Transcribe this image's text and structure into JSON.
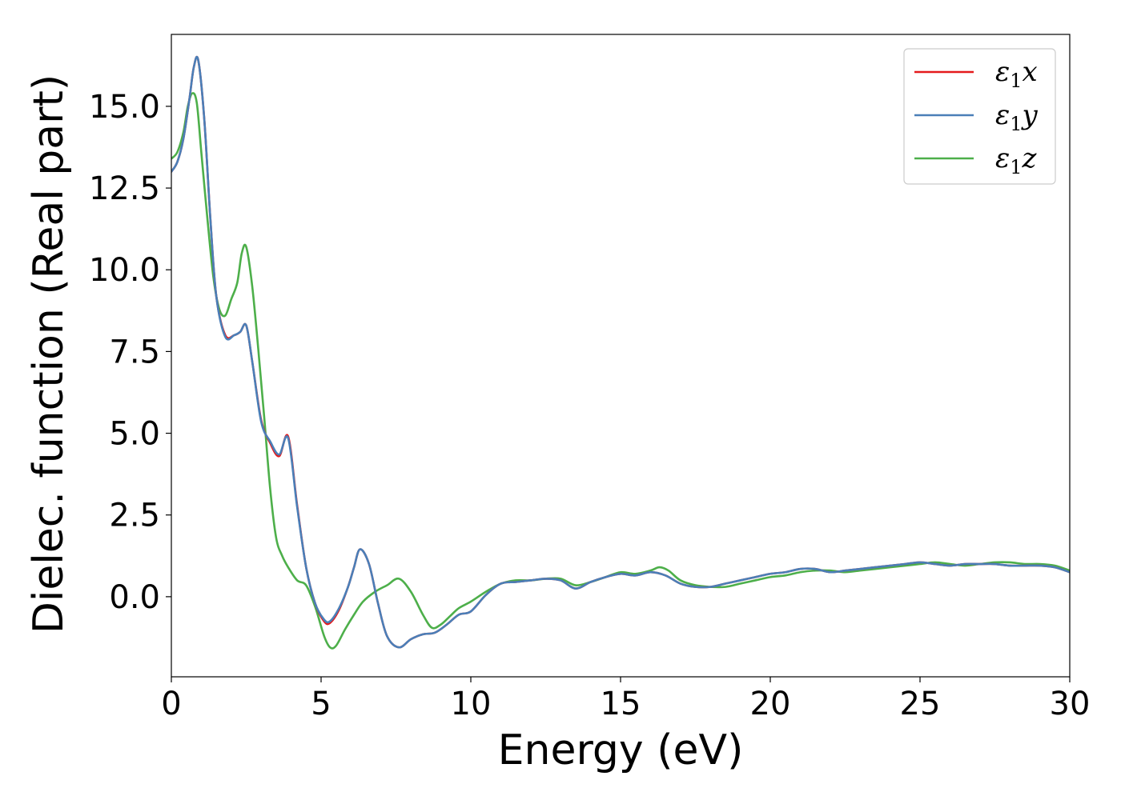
{
  "chart_data": {
    "type": "line",
    "xlabel": "Energy (eV)",
    "ylabel": "Dielec. function (Real part)",
    "xlim": [
      0,
      30
    ],
    "ylim": [
      -2.45,
      17.2
    ],
    "xticks": [
      0,
      5,
      10,
      15,
      20,
      25,
      30
    ],
    "xtick_labels": [
      "0",
      "5",
      "10",
      "15",
      "20",
      "25",
      "30"
    ],
    "yticks": [
      0,
      2.5,
      5,
      7.5,
      10,
      12.5,
      15
    ],
    "ytick_labels": [
      "0.0",
      "2.5",
      "5.0",
      "7.5",
      "10.0",
      "12.5",
      "15.0"
    ],
    "grid": false,
    "legend_position": "top-right",
    "series": [
      {
        "name": "ε1x",
        "legend": {
          "base": "ε",
          "sub": "1",
          "tail": "x"
        },
        "color": "#e41a1c",
        "x": [
          0,
          0.2,
          0.4,
          0.6,
          0.75,
          0.9,
          1.1,
          1.3,
          1.5,
          1.8,
          2.1,
          2.3,
          2.5,
          2.7,
          3.0,
          3.3,
          3.6,
          3.9,
          4.2,
          4.5,
          4.8,
          5.1,
          5.3,
          5.6,
          5.9,
          6.1,
          6.3,
          6.6,
          6.9,
          7.2,
          7.6,
          8.0,
          8.4,
          8.8,
          9.2,
          9.6,
          10.0,
          10.5,
          11.0,
          11.5,
          12.0,
          12.5,
          13.0,
          13.5,
          14.0,
          14.5,
          15.0,
          15.5,
          16.0,
          16.5,
          17.0,
          17.5,
          18.0,
          18.5,
          19.0,
          19.5,
          20.0,
          20.5,
          21.0,
          21.5,
          22.0,
          22.5,
          23.0,
          23.5,
          24.0,
          24.5,
          25.0,
          25.5,
          26.0,
          26.5,
          27.0,
          27.5,
          28.0,
          28.5,
          29.0,
          29.5,
          30.0
        ],
        "y": [
          13.0,
          13.3,
          14.0,
          15.2,
          16.2,
          16.4,
          14.6,
          11.6,
          9.2,
          8.0,
          8.0,
          8.1,
          8.3,
          7.2,
          5.4,
          4.7,
          4.3,
          4.9,
          2.8,
          0.9,
          -0.2,
          -0.75,
          -0.8,
          -0.4,
          0.3,
          0.9,
          1.45,
          1.0,
          -0.2,
          -1.2,
          -1.55,
          -1.3,
          -1.15,
          -1.1,
          -0.85,
          -0.55,
          -0.45,
          0.05,
          0.4,
          0.45,
          0.5,
          0.55,
          0.5,
          0.25,
          0.45,
          0.6,
          0.7,
          0.65,
          0.75,
          0.65,
          0.4,
          0.3,
          0.3,
          0.4,
          0.5,
          0.6,
          0.7,
          0.75,
          0.85,
          0.85,
          0.75,
          0.8,
          0.85,
          0.9,
          0.95,
          1.0,
          1.05,
          1.0,
          0.95,
          1.0,
          1.0,
          1.0,
          0.95,
          0.95,
          0.95,
          0.9,
          0.75
        ]
      },
      {
        "name": "ε1y",
        "legend": {
          "base": "ε",
          "sub": "1",
          "tail": "y"
        },
        "color": "#4a7fb8",
        "x": [
          0,
          0.2,
          0.4,
          0.6,
          0.75,
          0.9,
          1.1,
          1.3,
          1.5,
          1.8,
          2.1,
          2.3,
          2.5,
          2.7,
          3.0,
          3.3,
          3.6,
          3.9,
          4.2,
          4.5,
          4.8,
          5.1,
          5.3,
          5.6,
          5.9,
          6.1,
          6.3,
          6.6,
          6.9,
          7.2,
          7.6,
          8.0,
          8.4,
          8.8,
          9.2,
          9.6,
          10.0,
          10.5,
          11.0,
          11.5,
          12.0,
          12.5,
          13.0,
          13.5,
          14.0,
          14.5,
          15.0,
          15.5,
          16.0,
          16.5,
          17.0,
          17.5,
          18.0,
          18.5,
          19.0,
          19.5,
          20.0,
          20.5,
          21.0,
          21.5,
          22.0,
          22.5,
          23.0,
          23.5,
          24.0,
          24.5,
          25.0,
          25.5,
          26.0,
          26.5,
          27.0,
          27.5,
          28.0,
          28.5,
          29.0,
          29.5,
          30.0
        ],
        "y": [
          13.0,
          13.3,
          14.0,
          15.2,
          16.2,
          16.4,
          14.6,
          11.6,
          9.2,
          7.95,
          8.0,
          8.1,
          8.3,
          7.2,
          5.35,
          4.75,
          4.35,
          4.85,
          2.75,
          0.9,
          -0.2,
          -0.7,
          -0.75,
          -0.35,
          0.3,
          0.9,
          1.45,
          1.0,
          -0.2,
          -1.2,
          -1.55,
          -1.3,
          -1.15,
          -1.1,
          -0.85,
          -0.55,
          -0.45,
          0.05,
          0.4,
          0.45,
          0.5,
          0.55,
          0.5,
          0.25,
          0.45,
          0.6,
          0.7,
          0.65,
          0.75,
          0.65,
          0.4,
          0.3,
          0.3,
          0.4,
          0.5,
          0.6,
          0.7,
          0.75,
          0.85,
          0.85,
          0.75,
          0.8,
          0.85,
          0.9,
          0.95,
          1.0,
          1.05,
          1.0,
          0.95,
          1.0,
          1.0,
          1.0,
          0.95,
          0.95,
          0.95,
          0.9,
          0.75
        ]
      },
      {
        "name": "ε1z",
        "legend": {
          "base": "ε",
          "sub": "1",
          "tail": "z"
        },
        "color": "#4daf4a",
        "x": [
          0,
          0.2,
          0.4,
          0.55,
          0.7,
          0.85,
          1.0,
          1.2,
          1.4,
          1.6,
          1.8,
          2.0,
          2.2,
          2.35,
          2.5,
          2.7,
          2.9,
          3.1,
          3.3,
          3.5,
          3.7,
          3.9,
          4.2,
          4.5,
          4.8,
          5.1,
          5.3,
          5.5,
          5.8,
          6.1,
          6.4,
          6.8,
          7.2,
          7.6,
          8.0,
          8.4,
          8.7,
          9.0,
          9.3,
          9.6,
          10.0,
          10.5,
          11.0,
          11.5,
          12.0,
          12.5,
          13.0,
          13.5,
          14.0,
          14.5,
          15.0,
          15.5,
          16.0,
          16.3,
          16.6,
          17.0,
          17.5,
          18.0,
          18.5,
          19.0,
          19.5,
          20.0,
          20.5,
          21.0,
          21.5,
          22.0,
          22.5,
          23.0,
          23.5,
          24.0,
          24.5,
          25.0,
          25.5,
          26.0,
          26.5,
          27.0,
          27.5,
          28.0,
          28.5,
          29.0,
          29.5,
          30.0
        ],
        "y": [
          13.4,
          13.6,
          14.2,
          15.0,
          15.4,
          15.1,
          13.6,
          11.6,
          9.8,
          8.8,
          8.6,
          9.1,
          9.6,
          10.5,
          10.7,
          9.5,
          7.6,
          5.5,
          3.3,
          1.8,
          1.25,
          0.9,
          0.5,
          0.35,
          -0.3,
          -1.2,
          -1.55,
          -1.5,
          -1.0,
          -0.55,
          -0.15,
          0.15,
          0.35,
          0.55,
          0.15,
          -0.55,
          -0.95,
          -0.85,
          -0.6,
          -0.35,
          -0.15,
          0.15,
          0.4,
          0.5,
          0.5,
          0.55,
          0.55,
          0.35,
          0.45,
          0.6,
          0.75,
          0.7,
          0.8,
          0.9,
          0.8,
          0.5,
          0.35,
          0.3,
          0.3,
          0.4,
          0.5,
          0.6,
          0.65,
          0.75,
          0.8,
          0.8,
          0.75,
          0.8,
          0.85,
          0.9,
          0.95,
          1.0,
          1.05,
          1.0,
          0.95,
          1.0,
          1.05,
          1.05,
          1.0,
          1.0,
          0.95,
          0.8
        ]
      }
    ]
  }
}
